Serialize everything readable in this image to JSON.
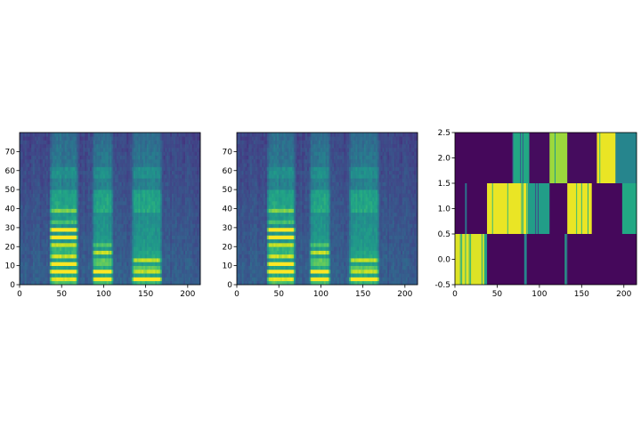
{
  "chart_data": [
    {
      "type": "heatmap",
      "colormap": "viridis",
      "xlim": [
        0,
        215
      ],
      "ylim": [
        0,
        80
      ],
      "xticks": [
        0,
        50,
        100,
        150,
        200
      ],
      "yticks": [
        0,
        10,
        20,
        30,
        40,
        50,
        60,
        70
      ],
      "xtick_labels": [
        "0",
        "50",
        "100",
        "150",
        "200"
      ],
      "ytick_labels": [
        "0",
        "10",
        "20",
        "30",
        "40",
        "50",
        "60",
        "70"
      ],
      "silent_ranges": [
        [
          0,
          35
        ],
        [
          70,
          86
        ],
        [
          112,
          133
        ],
        [
          170,
          215
        ]
      ],
      "voiced_segments": [
        {
          "start": 35,
          "end": 70,
          "harmonic_spacing": 3.6,
          "harmonic_top": 32,
          "bright_top": 30
        },
        {
          "start": 86,
          "end": 112,
          "harmonic_spacing": 3.4,
          "harmonic_top": 14,
          "bright_top": 13
        },
        {
          "start": 133,
          "end": 170,
          "harmonic_spacing": 3.2,
          "harmonic_top": 10,
          "bright_top": 9
        }
      ],
      "title": "",
      "xlabel": "",
      "ylabel": ""
    },
    {
      "type": "heatmap",
      "colormap": "viridis",
      "xlim": [
        0,
        215
      ],
      "ylim": [
        0,
        80
      ],
      "xticks": [
        0,
        50,
        100,
        150,
        200
      ],
      "yticks": [
        0,
        10,
        20,
        30,
        40,
        50,
        60,
        70
      ],
      "xtick_labels": [
        "0",
        "50",
        "100",
        "150",
        "200"
      ],
      "ytick_labels": [
        "0",
        "10",
        "20",
        "30",
        "40",
        "50",
        "60",
        "70"
      ],
      "silent_ranges": [
        [
          0,
          35
        ],
        [
          70,
          86
        ],
        [
          112,
          133
        ],
        [
          170,
          215
        ]
      ],
      "voiced_segments": [
        {
          "start": 35,
          "end": 70,
          "harmonic_spacing": 3.6,
          "harmonic_top": 32,
          "bright_top": 30
        },
        {
          "start": 86,
          "end": 112,
          "harmonic_spacing": 3.4,
          "harmonic_top": 14,
          "bright_top": 13
        },
        {
          "start": 133,
          "end": 170,
          "harmonic_spacing": 3.2,
          "harmonic_top": 10,
          "bright_top": 9
        }
      ],
      "title": "",
      "xlabel": "",
      "ylabel": ""
    },
    {
      "type": "heatmap",
      "colormap": "viridis",
      "xlim": [
        0,
        215
      ],
      "ylim": [
        -0.5,
        2.5
      ],
      "xticks": [
        0,
        50,
        100,
        150,
        200
      ],
      "yticks": [
        -0.5,
        0.0,
        0.5,
        1.0,
        1.5,
        2.0,
        2.5
      ],
      "xtick_labels": [
        "0",
        "50",
        "100",
        "150",
        "200"
      ],
      "ytick_labels": [
        "-0.5",
        "0.0",
        "0.5",
        "1.0",
        "1.5",
        "2.0",
        "2.5"
      ],
      "rows": [
        {
          "row": 0,
          "segments": [
            [
              0,
              35,
              0.95
            ],
            [
              35,
              38,
              0.55
            ],
            [
              38,
              82,
              0.02
            ],
            [
              82,
              85,
              0.45
            ],
            [
              85,
              130,
              0.02
            ],
            [
              130,
              133,
              0.6
            ],
            [
              133,
              215,
              0.02
            ]
          ]
        },
        {
          "row": 1,
          "segments": [
            [
              0,
              12,
              0.02
            ],
            [
              12,
              14,
              0.4
            ],
            [
              14,
              38,
              0.02
            ],
            [
              38,
              86,
              0.97
            ],
            [
              86,
              112,
              0.55
            ],
            [
              112,
              133,
              0.02
            ],
            [
              133,
              162,
              0.97
            ],
            [
              162,
              198,
              0.02
            ],
            [
              198,
              215,
              0.6
            ]
          ]
        },
        {
          "row": 2,
          "segments": [
            [
              0,
              68,
              0.02
            ],
            [
              68,
              88,
              0.6
            ],
            [
              88,
              112,
              0.03
            ],
            [
              112,
              133,
              0.85
            ],
            [
              133,
              168,
              0.03
            ],
            [
              168,
              190,
              0.97
            ],
            [
              190,
              215,
              0.45
            ]
          ]
        }
      ],
      "title": "",
      "xlabel": "",
      "ylabel": ""
    }
  ]
}
